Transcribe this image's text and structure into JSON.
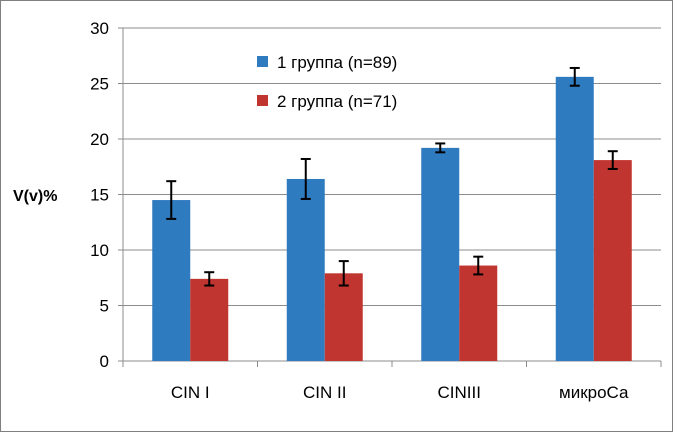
{
  "chart_data": {
    "type": "bar",
    "title": "",
    "xlabel": "",
    "ylabel": "V(v)%",
    "ylim": [
      0,
      30
    ],
    "yticks": [
      0,
      5,
      10,
      15,
      20,
      25,
      30
    ],
    "grid": true,
    "legend_position": "top-center",
    "categories": [
      "CIN I",
      "CIN II",
      "CINIII",
      "микроСа"
    ],
    "series": [
      {
        "name": "1 группа (n=89)",
        "color": "#2f7bbf",
        "values": [
          14.5,
          16.4,
          19.2,
          25.6
        ],
        "errors": [
          1.7,
          1.8,
          0.4,
          0.8
        ]
      },
      {
        "name": "2 группа (n=71)",
        "color": "#c0352f",
        "values": [
          7.4,
          7.9,
          8.6,
          18.1
        ],
        "errors": [
          0.6,
          1.1,
          0.8,
          0.8
        ]
      }
    ]
  }
}
